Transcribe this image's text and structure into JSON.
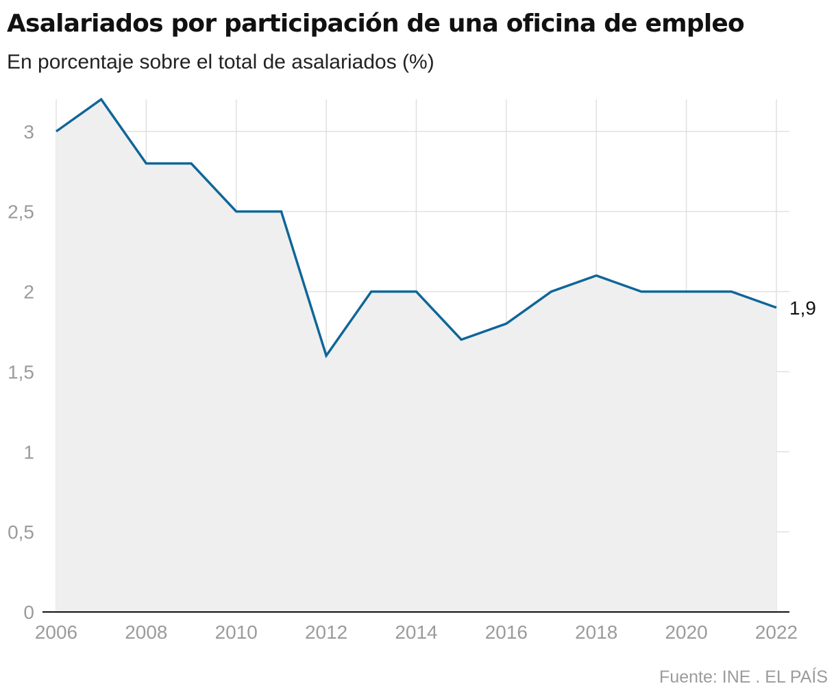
{
  "header": {
    "title": "Asalariados por participación de una oficina de empleo",
    "subtitle": "En porcentaje sobre el total de asalariados (%)"
  },
  "footer": {
    "source": "Fuente: INE . EL PAÍS"
  },
  "chart_data": {
    "type": "area",
    "title": "Asalariados por participación de una oficina de empleo",
    "subtitle": "En porcentaje sobre el total de asalariados (%)",
    "xlabel": "",
    "ylabel": "",
    "x": [
      2006,
      2007,
      2008,
      2009,
      2010,
      2011,
      2012,
      2013,
      2014,
      2015,
      2016,
      2017,
      2018,
      2019,
      2020,
      2021,
      2022
    ],
    "series": [
      {
        "values": [
          3.0,
          3.2,
          2.8,
          2.8,
          2.5,
          2.5,
          1.6,
          2.0,
          2.0,
          1.7,
          1.8,
          2.0,
          2.1,
          2.0,
          2.0,
          2.0,
          1.9
        ]
      }
    ],
    "xlim": [
      2006,
      2022
    ],
    "ylim": [
      0,
      3.2
    ],
    "x_ticks": [
      "2006",
      "2008",
      "2010",
      "2012",
      "2014",
      "2016",
      "2018",
      "2020",
      "2022"
    ],
    "x_tick_values": [
      2006,
      2008,
      2010,
      2012,
      2014,
      2016,
      2018,
      2020,
      2022
    ],
    "y_ticks": [
      "0",
      "0,5",
      "1",
      "1,5",
      "2",
      "2,5",
      "3"
    ],
    "y_tick_values": [
      0,
      0.5,
      1,
      1.5,
      2,
      2.5,
      3
    ],
    "end_label": "1,9",
    "grid": true,
    "legend": "none",
    "colors": {
      "line": "#0f6698",
      "fill": "#efefef",
      "grid": "#e0e0e0",
      "axis": "#111111",
      "tick_text": "#9b9b9b"
    }
  }
}
